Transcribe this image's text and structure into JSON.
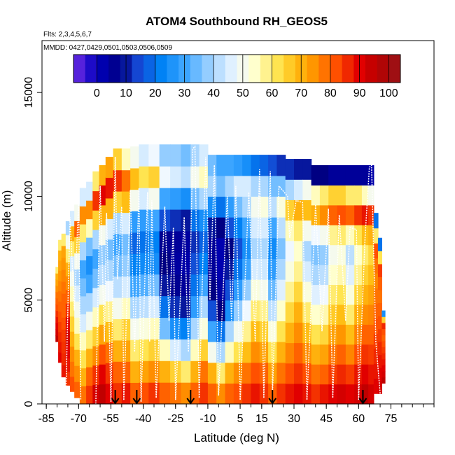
{
  "chart_data": {
    "type": "heatmap",
    "title": "ATOM4 Southbound RH_GEOS5",
    "notes": [
      "Flts: 2,3,4,5,6,7",
      "MMDD: 0427,0429,0501,0503,0506,0509"
    ],
    "xlabel": "Latitude (deg N)",
    "ylabel": "Altitude (m)",
    "xlim": [
      -87,
      95
    ],
    "ylim": [
      0,
      17500
    ],
    "x_ticks": [
      -85,
      -70,
      -55,
      -40,
      -25,
      -10,
      5,
      15,
      30,
      45,
      60,
      75
    ],
    "x_minor_step": 5,
    "y_ticks": [
      0,
      5000,
      10000,
      15000
    ],
    "colorbar": {
      "ticks": [
        0,
        10,
        20,
        30,
        40,
        50,
        60,
        70,
        80,
        90,
        100
      ],
      "range": [
        -8,
        104
      ],
      "bins": 28
    },
    "profile_columns": [
      {
        "lat": -80,
        "top": 6600,
        "bottom": 3000
      },
      {
        "lat": -79,
        "top": 7900,
        "bottom": 2000
      },
      {
        "lat": -77,
        "top": 8200,
        "bottom": 1300
      },
      {
        "lat": -75,
        "top": 8800,
        "bottom": 900
      },
      {
        "lat": -73,
        "top": 9300,
        "bottom": 600
      },
      {
        "lat": -71,
        "top": 9600,
        "bottom": 300
      },
      {
        "lat": -68,
        "top": 10400,
        "bottom": 0
      },
      {
        "lat": -65,
        "top": 10700,
        "bottom": 0
      },
      {
        "lat": -62,
        "top": 11200,
        "bottom": 0
      },
      {
        "lat": -59,
        "top": 11500,
        "bottom": 0
      },
      {
        "lat": -56,
        "top": 11900,
        "bottom": 0
      },
      {
        "lat": -52,
        "top": 12300,
        "bottom": 0
      },
      {
        "lat": -48,
        "top": 12300,
        "bottom": 0
      },
      {
        "lat": -44,
        "top": 12400,
        "bottom": 0
      },
      {
        "lat": -40,
        "top": 12500,
        "bottom": 0
      },
      {
        "lat": -35,
        "top": 12500,
        "bottom": 0
      },
      {
        "lat": -30,
        "top": 12500,
        "bottom": 0
      },
      {
        "lat": -25,
        "top": 12500,
        "bottom": 0
      },
      {
        "lat": -20,
        "top": 12500,
        "bottom": 0
      },
      {
        "lat": -16,
        "top": 12500,
        "bottom": 0
      },
      {
        "lat": -12,
        "top": 12500,
        "bottom": 0
      },
      {
        "lat": -8,
        "top": 12000,
        "bottom": 0
      },
      {
        "lat": -4,
        "top": 12000,
        "bottom": 0
      },
      {
        "lat": 0,
        "top": 12000,
        "bottom": 0
      },
      {
        "lat": 4,
        "top": 12000,
        "bottom": 0
      },
      {
        "lat": 8,
        "top": 12000,
        "bottom": 0
      },
      {
        "lat": 12,
        "top": 12000,
        "bottom": 0
      },
      {
        "lat": 16,
        "top": 12000,
        "bottom": 0
      },
      {
        "lat": 20,
        "top": 12000,
        "bottom": 0
      },
      {
        "lat": 24,
        "top": 12000,
        "bottom": 0
      },
      {
        "lat": 28,
        "top": 11800,
        "bottom": 0
      },
      {
        "lat": 32,
        "top": 11800,
        "bottom": 0
      },
      {
        "lat": 36,
        "top": 11800,
        "bottom": 0
      },
      {
        "lat": 40,
        "top": 11500,
        "bottom": 0
      },
      {
        "lat": 44,
        "top": 11500,
        "bottom": 0
      },
      {
        "lat": 48,
        "top": 11500,
        "bottom": 0
      },
      {
        "lat": 52,
        "top": 11500,
        "bottom": 0
      },
      {
        "lat": 56,
        "top": 11500,
        "bottom": 0
      },
      {
        "lat": 60,
        "top": 11500,
        "bottom": 0
      },
      {
        "lat": 63,
        "top": 11500,
        "bottom": 0
      },
      {
        "lat": 66,
        "top": 11500,
        "bottom": 0
      },
      {
        "lat": 68,
        "top": 9200,
        "bottom": 500
      },
      {
        "lat": 70,
        "top": 8000,
        "bottom": 500
      },
      {
        "lat": 71.5,
        "top": 4500,
        "bottom": 1000
      }
    ],
    "rh_profiles": [
      {
        "lat": -80,
        "rh": [
          95,
          92,
          90,
          88,
          85,
          82,
          80,
          78,
          75,
          72,
          70,
          60
        ]
      },
      {
        "lat": -79,
        "rh": [
          90,
          88,
          86,
          84,
          82,
          80,
          78,
          76,
          74,
          72,
          70,
          60
        ]
      },
      {
        "lat": -77,
        "rh": [
          88,
          86,
          85,
          84,
          82,
          80,
          80,
          78,
          76,
          74,
          72,
          60
        ]
      },
      {
        "lat": -75,
        "rh": [
          85,
          88,
          90,
          92,
          90,
          85,
          80,
          75,
          70,
          60,
          50,
          40
        ]
      },
      {
        "lat": -73,
        "rh": [
          82,
          78,
          75,
          70,
          65,
          60,
          55,
          50,
          45,
          60,
          70,
          45
        ]
      },
      {
        "lat": -71,
        "rh": [
          80,
          75,
          70,
          62,
          55,
          50,
          45,
          40,
          50,
          65,
          80,
          50
        ]
      },
      {
        "lat": -68,
        "rh": [
          78,
          70,
          62,
          55,
          45,
          40,
          35,
          30,
          40,
          60,
          75,
          45
        ]
      },
      {
        "lat": -65,
        "rh": [
          85,
          80,
          70,
          60,
          50,
          40,
          30,
          25,
          35,
          55,
          75,
          45
        ]
      },
      {
        "lat": -62,
        "rh": [
          92,
          85,
          75,
          65,
          55,
          45,
          35,
          30,
          40,
          65,
          85,
          60
        ]
      },
      {
        "lat": -59,
        "rh": [
          95,
          90,
          82,
          72,
          62,
          50,
          42,
          38,
          50,
          70,
          90,
          70
        ]
      },
      {
        "lat": -56,
        "rh": [
          90,
          85,
          78,
          68,
          58,
          48,
          40,
          35,
          45,
          70,
          88,
          72
        ]
      },
      {
        "lat": -52,
        "rh": [
          85,
          80,
          70,
          60,
          50,
          42,
          35,
          30,
          40,
          65,
          85,
          65
        ]
      },
      {
        "lat": -48,
        "rh": [
          88,
          80,
          72,
          65,
          55,
          45,
          38,
          35,
          45,
          68,
          78,
          55
        ]
      },
      {
        "lat": -44,
        "rh": [
          80,
          70,
          60,
          50,
          40,
          30,
          22,
          18,
          28,
          50,
          68,
          50
        ]
      },
      {
        "lat": -40,
        "rh": [
          82,
          72,
          62,
          52,
          42,
          32,
          24,
          20,
          28,
          45,
          62,
          45
        ]
      },
      {
        "lat": -35,
        "rh": [
          85,
          75,
          65,
          55,
          45,
          35,
          25,
          22,
          30,
          50,
          65,
          48
        ]
      },
      {
        "lat": -30,
        "rh": [
          80,
          70,
          55,
          35,
          20,
          10,
          8,
          6,
          15,
          30,
          48,
          38
        ]
      },
      {
        "lat": -25,
        "rh": [
          78,
          65,
          45,
          25,
          12,
          6,
          4,
          5,
          12,
          28,
          45,
          38
        ]
      },
      {
        "lat": -20,
        "rh": [
          75,
          60,
          40,
          22,
          10,
          5,
          3,
          4,
          10,
          25,
          42,
          35
        ]
      },
      {
        "lat": -16,
        "rh": [
          80,
          70,
          55,
          40,
          28,
          20,
          15,
          12,
          20,
          35,
          50,
          40
        ]
      },
      {
        "lat": -12,
        "rh": [
          85,
          78,
          65,
          52,
          40,
          30,
          22,
          18,
          25,
          40,
          55,
          45
        ]
      },
      {
        "lat": -8,
        "rh": [
          80,
          70,
          50,
          30,
          15,
          8,
          5,
          5,
          10,
          25,
          40,
          35
        ]
      },
      {
        "lat": -4,
        "rh": [
          75,
          60,
          40,
          20,
          8,
          4,
          2,
          2,
          8,
          20,
          35,
          30
        ]
      },
      {
        "lat": 0,
        "rh": [
          80,
          70,
          55,
          40,
          25,
          15,
          10,
          8,
          15,
          28,
          40,
          30
        ]
      },
      {
        "lat": 4,
        "rh": [
          82,
          75,
          62,
          50,
          38,
          28,
          20,
          15,
          22,
          35,
          45,
          28
        ]
      },
      {
        "lat": 8,
        "rh": [
          85,
          78,
          68,
          58,
          48,
          38,
          30,
          25,
          30,
          40,
          45,
          25
        ]
      },
      {
        "lat": 12,
        "rh": [
          88,
          82,
          75,
          68,
          60,
          52,
          45,
          40,
          45,
          50,
          40,
          20
        ]
      },
      {
        "lat": 16,
        "rh": [
          85,
          80,
          72,
          65,
          58,
          50,
          44,
          40,
          45,
          52,
          40,
          18
        ]
      },
      {
        "lat": 20,
        "rh": [
          80,
          72,
          62,
          52,
          42,
          34,
          28,
          24,
          30,
          42,
          35,
          15
        ]
      },
      {
        "lat": 24,
        "rh": [
          85,
          78,
          70,
          62,
          54,
          46,
          40,
          36,
          42,
          52,
          35,
          12
        ]
      },
      {
        "lat": 28,
        "rh": [
          88,
          82,
          76,
          70,
          64,
          58,
          52,
          48,
          55,
          65,
          40,
          12
        ]
      },
      {
        "lat": 32,
        "rh": [
          90,
          85,
          80,
          75,
          70,
          64,
          58,
          54,
          60,
          70,
          45,
          10
        ]
      },
      {
        "lat": 36,
        "rh": [
          88,
          82,
          75,
          68,
          60,
          52,
          45,
          40,
          50,
          68,
          50,
          10
        ]
      },
      {
        "lat": 40,
        "rh": [
          85,
          78,
          70,
          62,
          54,
          46,
          40,
          36,
          48,
          70,
          55,
          8
        ]
      },
      {
        "lat": 44,
        "rh": [
          88,
          80,
          72,
          64,
          56,
          48,
          42,
          38,
          50,
          75,
          60,
          8
        ]
      },
      {
        "lat": 48,
        "rh": [
          90,
          84,
          78,
          72,
          66,
          60,
          54,
          50,
          58,
          80,
          65,
          5
        ]
      },
      {
        "lat": 52,
        "rh": [
          92,
          86,
          80,
          74,
          68,
          62,
          56,
          52,
          60,
          82,
          65,
          5
        ]
      },
      {
        "lat": 56,
        "rh": [
          90,
          84,
          76,
          68,
          60,
          52,
          46,
          42,
          55,
          80,
          60,
          5
        ]
      },
      {
        "lat": 60,
        "rh": [
          92,
          88,
          82,
          76,
          70,
          64,
          58,
          54,
          62,
          85,
          60,
          5
        ]
      },
      {
        "lat": 63,
        "rh": [
          95,
          90,
          85,
          80,
          75,
          70,
          65,
          60,
          68,
          88,
          55,
          5
        ]
      },
      {
        "lat": 66,
        "rh": [
          92,
          88,
          84,
          80,
          76,
          72,
          68,
          64,
          70,
          85,
          50,
          3
        ]
      },
      {
        "lat": 68,
        "rh": [
          90,
          88,
          86,
          84,
          82,
          80,
          78,
          76,
          78,
          82,
          60,
          20
        ]
      },
      {
        "lat": 70,
        "rh": [
          92,
          90,
          88,
          86,
          84,
          82,
          80,
          78,
          80,
          84,
          62,
          20
        ]
      },
      {
        "lat": 71.5,
        "rh": [
          95,
          92,
          90,
          88,
          86,
          84,
          82,
          80,
          82,
          86,
          65,
          25
        ]
      }
    ],
    "flight_tracks": [
      [
        [
          -76,
          0
        ],
        [
          -74,
          9000
        ],
        [
          -72,
          4500
        ],
        [
          -70,
          9800
        ],
        [
          -69,
          200
        ]
      ],
      [
        [
          -62,
          0
        ],
        [
          -60,
          10500
        ],
        [
          -58,
          3000
        ],
        [
          -57,
          9200
        ],
        [
          -55,
          100
        ]
      ],
      [
        [
          -55,
          100
        ],
        [
          -53,
          11900
        ],
        [
          -52,
          6000
        ],
        [
          -50,
          9500
        ],
        [
          -49,
          200
        ]
      ],
      [
        [
          -49,
          200
        ],
        [
          -46,
          10300
        ],
        [
          -44,
          2500
        ],
        [
          -42,
          10400
        ],
        [
          -41,
          100
        ]
      ],
      [
        [
          -41,
          100
        ],
        [
          -38,
          10200
        ],
        [
          -37,
          3000
        ],
        [
          -36,
          9800
        ],
        [
          -34,
          300
        ]
      ],
      [
        [
          -34,
          300
        ],
        [
          -30,
          9500
        ],
        [
          -28,
          4000
        ],
        [
          -26,
          8500
        ],
        [
          -25,
          200
        ]
      ],
      [
        [
          -25,
          200
        ],
        [
          -21,
          9000
        ],
        [
          -19,
          2500
        ],
        [
          -17,
          12300
        ],
        [
          -16,
          12400
        ],
        [
          -14,
          300
        ]
      ],
      [
        [
          -14,
          300
        ],
        [
          -11,
          11900
        ],
        [
          -9,
          5000
        ],
        [
          -7,
          11500
        ],
        [
          -5,
          400
        ]
      ],
      [
        [
          -5,
          400
        ],
        [
          -1,
          10000
        ],
        [
          1,
          4000
        ],
        [
          3,
          10500
        ],
        [
          5,
          200
        ]
      ],
      [
        [
          5,
          200
        ],
        [
          9,
          10200
        ],
        [
          12,
          3000
        ],
        [
          14,
          11300
        ],
        [
          16,
          300
        ]
      ],
      [
        [
          16,
          300
        ],
        [
          19,
          11200
        ],
        [
          20,
          400
        ]
      ],
      [
        [
          20,
          400
        ],
        [
          23,
          10500
        ],
        [
          27,
          10000
        ],
        [
          28,
          8000
        ],
        [
          31,
          9800
        ],
        [
          34,
          9700
        ],
        [
          36,
          200
        ]
      ],
      [
        [
          36,
          200
        ],
        [
          40,
          9600
        ],
        [
          43,
          3500
        ],
        [
          46,
          9400
        ],
        [
          48,
          300
        ]
      ],
      [
        [
          48,
          300
        ],
        [
          51,
          9100
        ],
        [
          54,
          4000
        ],
        [
          56,
          8500
        ],
        [
          59,
          8400
        ],
        [
          60,
          200
        ]
      ],
      [
        [
          60,
          200
        ],
        [
          63,
          8000
        ],
        [
          65,
          11400
        ],
        [
          66,
          11500
        ],
        [
          68,
          3000
        ],
        [
          70,
          500
        ]
      ]
    ],
    "sounding_markers": [
      -53,
      -43,
      -18,
      20,
      62
    ]
  }
}
